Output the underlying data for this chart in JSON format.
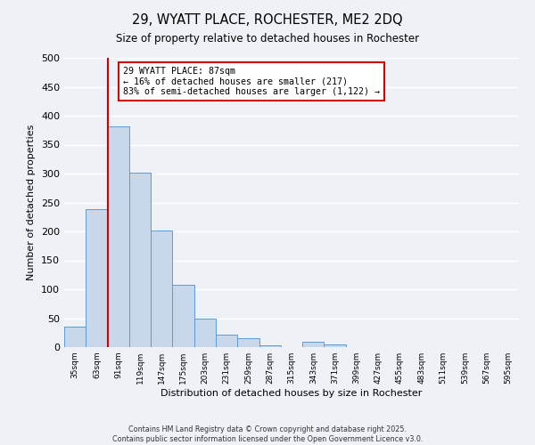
{
  "title": "29, WYATT PLACE, ROCHESTER, ME2 2DQ",
  "subtitle": "Size of property relative to detached houses in Rochester",
  "xlabel": "Distribution of detached houses by size in Rochester",
  "ylabel": "Number of detached properties",
  "bar_color": "#c8d8ea",
  "bar_edge_color": "#5b9bd5",
  "categories": [
    "35sqm",
    "63sqm",
    "91sqm",
    "119sqm",
    "147sqm",
    "175sqm",
    "203sqm",
    "231sqm",
    "259sqm",
    "287sqm",
    "315sqm",
    "343sqm",
    "371sqm",
    "399sqm",
    "427sqm",
    "455sqm",
    "483sqm",
    "511sqm",
    "539sqm",
    "567sqm",
    "595sqm"
  ],
  "values": [
    35,
    238,
    382,
    302,
    201,
    107,
    50,
    22,
    15,
    3,
    0,
    9,
    4,
    0,
    0,
    0,
    0,
    0,
    0,
    0,
    0
  ],
  "ylim": [
    0,
    500
  ],
  "yticks": [
    0,
    50,
    100,
    150,
    200,
    250,
    300,
    350,
    400,
    450,
    500
  ],
  "property_line_color": "#cc0000",
  "annotation_line1": "29 WYATT PLACE: 87sqm",
  "annotation_line2": "← 16% of detached houses are smaller (217)",
  "annotation_line3": "83% of semi-detached houses are larger (1,122) →",
  "annotation_box_color": "white",
  "annotation_box_edge_color": "#cc0000",
  "footer_line1": "Contains HM Land Registry data © Crown copyright and database right 2025.",
  "footer_line2": "Contains public sector information licensed under the Open Government Licence v3.0.",
  "background_color": "#eef2f7",
  "grid_color": "#ffffff"
}
